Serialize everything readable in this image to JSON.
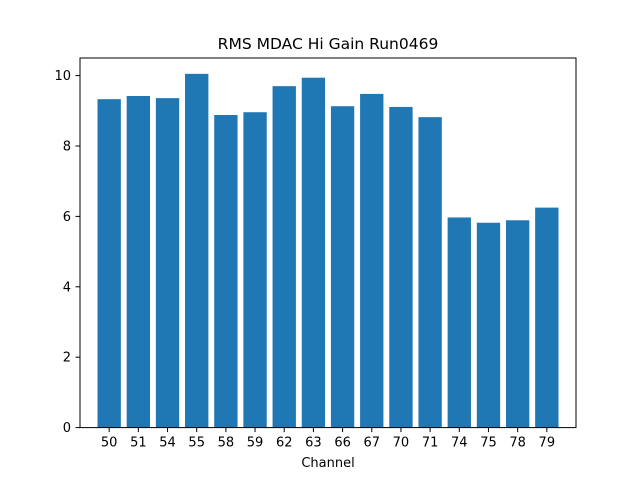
{
  "chart_data": {
    "type": "bar",
    "title": "RMS MDAC Hi Gain Run0469",
    "xlabel": "Channel",
    "ylabel": "",
    "categories": [
      "50",
      "51",
      "54",
      "55",
      "58",
      "59",
      "62",
      "63",
      "66",
      "67",
      "70",
      "71",
      "74",
      "75",
      "78",
      "79"
    ],
    "values": [
      9.33,
      9.42,
      9.36,
      10.05,
      8.88,
      8.96,
      9.7,
      9.94,
      9.13,
      9.48,
      9.11,
      8.82,
      5.97,
      5.82,
      5.89,
      6.25
    ],
    "ylim": [
      0,
      10.5
    ],
    "yticks": [
      0,
      2,
      4,
      6,
      8,
      10
    ],
    "grid": false,
    "bar_color": "#1f77b4"
  }
}
